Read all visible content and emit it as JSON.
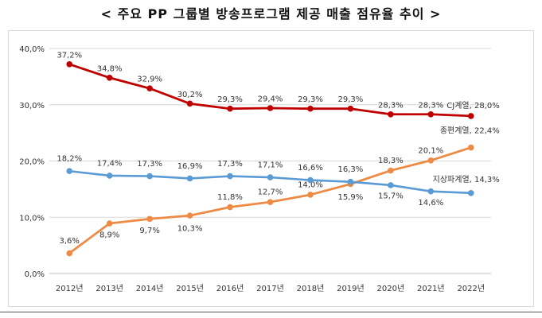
{
  "title": "< 주요 PP 그룹별 방송프로그램 제공 매출 점유율 추이 >",
  "chart_data": {
    "type": "line",
    "title": "< 주요 PP 그룹별 방송프로그램 제공 매출 점유율 추이 >",
    "xlabel": "",
    "ylabel": "",
    "categories": [
      "2012년",
      "2013년",
      "2014년",
      "2015년",
      "2016년",
      "2017년",
      "2018년",
      "2019년",
      "2020년",
      "2021년",
      "2022년"
    ],
    "ylim": [
      0,
      40
    ],
    "y_ticks": [
      "0,0%",
      "10,0%",
      "20,0%",
      "30,0%",
      "40,0%"
    ],
    "grid": true,
    "legend": "none (end-of-line labels)",
    "series": [
      {
        "name": "CJ계열",
        "end_label": "CJ계열, 28,0%",
        "color": "#c00000",
        "values": [
          37.2,
          34.8,
          32.9,
          30.2,
          29.3,
          29.4,
          29.3,
          29.3,
          28.3,
          28.3,
          28.0
        ],
        "labels": [
          "37,2%",
          "34,8%",
          "32,9%",
          "30,2%",
          "29,3%",
          "29,4%",
          "29,3%",
          "29,3%",
          "28,3%",
          "28,3%",
          ""
        ]
      },
      {
        "name": "종편계열",
        "end_label": "종편계열, 22,4%",
        "color": "#ed8b45",
        "values": [
          3.6,
          8.9,
          9.7,
          10.3,
          11.8,
          12.7,
          14.0,
          15.9,
          18.3,
          20.1,
          22.4
        ],
        "labels": [
          "3,6%",
          "8,9%",
          "9,7%",
          "10,3%",
          "11,8%",
          "12,7%",
          "14,0%",
          "15,9%",
          "18,3%",
          "20,1%",
          ""
        ]
      },
      {
        "name": "지상파계열",
        "end_label": "지상파계열, 14,3%",
        "color": "#5b9bd5",
        "values": [
          18.2,
          17.4,
          17.3,
          16.9,
          17.3,
          17.1,
          16.6,
          16.3,
          15.7,
          14.6,
          14.3
        ],
        "labels": [
          "18,2%",
          "17,4%",
          "17,3%",
          "16,9%",
          "17,3%",
          "17,1%",
          "16,6%",
          "16,3%",
          "15,7%",
          "14,6%",
          ""
        ]
      }
    ]
  }
}
